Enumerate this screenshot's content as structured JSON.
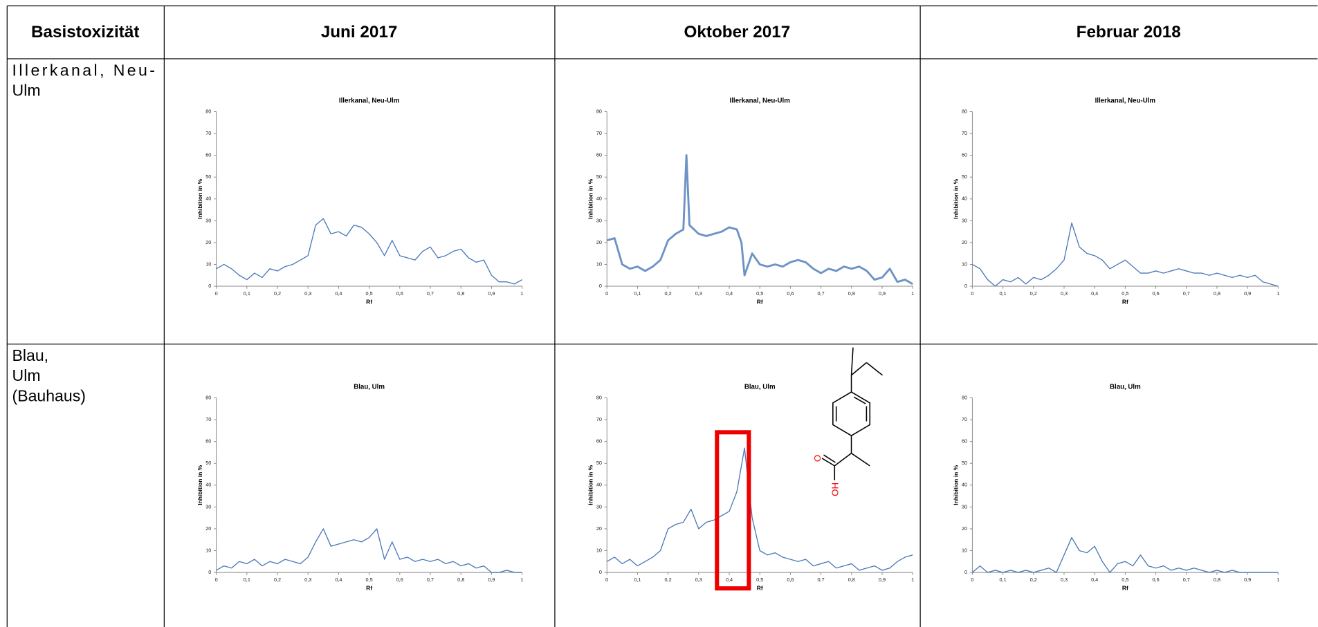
{
  "table": {
    "header": [
      "Basistoxizität",
      "Juni 2017",
      "Oktober 2017",
      "Februar 2018"
    ],
    "rows": [
      {
        "label": [
          "Illerkanal,  Neu-",
          "Ulm"
        ]
      },
      {
        "label": [
          "Blau,",
          "Ulm",
          "(Bauhaus)"
        ]
      }
    ]
  },
  "chart_data": [
    {
      "type": "line",
      "title": "Illerkanal, Neu-Ulm",
      "y_label": "Inhibition in %",
      "x_label": "Rf",
      "color": "#4a78b8",
      "x": [
        0,
        0.025,
        0.05,
        0.075,
        0.1,
        0.125,
        0.15,
        0.175,
        0.2,
        0.225,
        0.25,
        0.275,
        0.3,
        0.325,
        0.35,
        0.375,
        0.4,
        0.425,
        0.45,
        0.475,
        0.5,
        0.525,
        0.55,
        0.575,
        0.6,
        0.625,
        0.65,
        0.675,
        0.7,
        0.725,
        0.75,
        0.775,
        0.8,
        0.825,
        0.85,
        0.875,
        0.9,
        0.925,
        0.95,
        0.975,
        1
      ],
      "values": [
        8,
        10,
        8,
        5,
        3,
        6,
        4,
        8,
        7,
        9,
        10,
        12,
        14,
        28,
        31,
        24,
        25,
        23,
        28,
        27,
        24,
        20,
        14,
        21,
        14,
        13,
        12,
        16,
        18,
        13,
        14,
        16,
        17,
        13,
        11,
        12,
        5,
        2,
        2,
        1,
        3
      ],
      "xlim": [
        0,
        1
      ],
      "ylim": [
        0,
        80
      ],
      "xticks": [
        0,
        {
          "value": 0.1,
          "label": "0,1"
        },
        {
          "value": 0.2,
          "label": "0,2"
        },
        {
          "value": 0.3,
          "label": "0,3"
        },
        {
          "value": 0.4,
          "label": "0,4"
        },
        {
          "value": 0.5,
          "label": "0,5"
        },
        {
          "value": 0.6,
          "label": "0,6"
        },
        {
          "value": 0.7,
          "label": "0,7"
        },
        {
          "value": 0.8,
          "label": "0,8"
        },
        {
          "value": 0.9,
          "label": "0,9"
        },
        1
      ],
      "yticks": [
        0,
        10,
        20,
        30,
        40,
        50,
        60,
        70,
        80
      ]
    },
    {
      "type": "line",
      "title": "Illerkanal, Neu-Ulm",
      "y_label": "Inhibition in %",
      "x_label": "Rf",
      "color": "#6d93c6",
      "x": [
        0,
        0.025,
        0.05,
        0.075,
        0.1,
        0.125,
        0.15,
        0.175,
        0.2,
        0.225,
        0.25,
        0.26,
        0.27,
        0.3,
        0.325,
        0.35,
        0.375,
        0.4,
        0.425,
        0.44,
        0.45,
        0.475,
        0.5,
        0.525,
        0.55,
        0.575,
        0.6,
        0.625,
        0.65,
        0.675,
        0.7,
        0.725,
        0.75,
        0.775,
        0.8,
        0.825,
        0.85,
        0.875,
        0.9,
        0.925,
        0.95,
        0.975,
        1
      ],
      "values": [
        21,
        22,
        10,
        8,
        9,
        7,
        9,
        12,
        21,
        24,
        26,
        60,
        28,
        24,
        23,
        24,
        25,
        27,
        26,
        20,
        5,
        15,
        10,
        9,
        10,
        9,
        11,
        12,
        11,
        8,
        6,
        8,
        7,
        9,
        8,
        9,
        7,
        3,
        4,
        8,
        2,
        3,
        1
      ],
      "xlim": [
        0,
        1
      ],
      "ylim": [
        0,
        80
      ],
      "xticks": [
        0,
        {
          "value": 0.1,
          "label": "0,1"
        },
        {
          "value": 0.2,
          "label": "0,2"
        },
        {
          "value": 0.3,
          "label": "0,3"
        },
        {
          "value": 0.4,
          "label": "0,4"
        },
        {
          "value": 0.5,
          "label": "0,5"
        },
        {
          "value": 0.6,
          "label": "0,6"
        },
        {
          "value": 0.7,
          "label": "0,7"
        },
        {
          "value": 0.8,
          "label": "0,8"
        },
        {
          "value": 0.9,
          "label": "0,9"
        },
        1
      ],
      "yticks": [
        0,
        10,
        20,
        30,
        40,
        50,
        60,
        70,
        80
      ]
    },
    {
      "type": "line",
      "title": "Illerkanal, Neu-Ulm",
      "y_label": "Inhibition in %",
      "x_label": "Rf",
      "color": "#4a78b8",
      "x": [
        0,
        0.025,
        0.05,
        0.075,
        0.1,
        0.125,
        0.15,
        0.175,
        0.2,
        0.225,
        0.25,
        0.275,
        0.3,
        0.325,
        0.35,
        0.375,
        0.4,
        0.425,
        0.45,
        0.475,
        0.5,
        0.525,
        0.55,
        0.575,
        0.6,
        0.625,
        0.65,
        0.675,
        0.7,
        0.725,
        0.75,
        0.775,
        0.8,
        0.825,
        0.85,
        0.875,
        0.9,
        0.925,
        0.95,
        0.975,
        1
      ],
      "values": [
        10,
        8,
        3,
        0,
        3,
        2,
        4,
        1,
        4,
        3,
        5,
        8,
        12,
        29,
        18,
        15,
        14,
        12,
        8,
        10,
        12,
        9,
        6,
        6,
        7,
        6,
        7,
        8,
        7,
        6,
        6,
        5,
        6,
        5,
        4,
        5,
        4,
        5,
        2,
        1,
        0
      ],
      "xlim": [
        0,
        1
      ],
      "ylim": [
        0,
        80
      ],
      "xticks": [
        0,
        {
          "value": 0.1,
          "label": "0,1"
        },
        {
          "value": 0.2,
          "label": "0,2"
        },
        {
          "value": 0.3,
          "label": "0,3"
        },
        {
          "value": 0.4,
          "label": "0,4"
        },
        {
          "value": 0.5,
          "label": "0,5"
        },
        {
          "value": 0.6,
          "label": "0,6"
        },
        {
          "value": 0.7,
          "label": "0,7"
        },
        {
          "value": 0.8,
          "label": "0,8"
        },
        {
          "value": 0.9,
          "label": "0,9"
        },
        1
      ],
      "yticks": [
        0,
        10,
        20,
        30,
        40,
        50,
        60,
        70,
        80
      ]
    },
    {
      "type": "line",
      "title": "Blau, Ulm",
      "y_label": "Inhibition in %",
      "x_label": "Rf",
      "color": "#4a78b8",
      "x": [
        0,
        0.025,
        0.05,
        0.075,
        0.1,
        0.125,
        0.15,
        0.175,
        0.2,
        0.225,
        0.25,
        0.275,
        0.3,
        0.325,
        0.35,
        0.375,
        0.4,
        0.425,
        0.45,
        0.475,
        0.5,
        0.525,
        0.55,
        0.575,
        0.6,
        0.625,
        0.65,
        0.675,
        0.7,
        0.725,
        0.75,
        0.775,
        0.8,
        0.825,
        0.85,
        0.875,
        0.9,
        0.925,
        0.95,
        0.975,
        1
      ],
      "values": [
        1,
        3,
        2,
        5,
        4,
        6,
        3,
        5,
        4,
        6,
        5,
        4,
        7,
        14,
        20,
        12,
        13,
        14,
        15,
        14,
        16,
        20,
        6,
        14,
        6,
        7,
        5,
        6,
        5,
        6,
        4,
        5,
        3,
        4,
        2,
        3,
        0,
        0,
        1,
        0,
        0
      ],
      "xlim": [
        0,
        1
      ],
      "ylim": [
        0,
        80
      ],
      "xticks": [
        0,
        {
          "value": 0.1,
          "label": "0,1"
        },
        {
          "value": 0.2,
          "label": "0,2"
        },
        {
          "value": 0.3,
          "label": "0,3"
        },
        {
          "value": 0.4,
          "label": "0,4"
        },
        {
          "value": 0.5,
          "label": "0,5"
        },
        {
          "value": 0.6,
          "label": "0,6"
        },
        {
          "value": 0.7,
          "label": "0,7"
        },
        {
          "value": 0.8,
          "label": "0,8"
        },
        {
          "value": 0.9,
          "label": "0,9"
        },
        1
      ],
      "yticks": [
        0,
        10,
        20,
        30,
        40,
        50,
        60,
        70,
        80
      ]
    },
    {
      "type": "line",
      "title": "Blau, Ulm",
      "y_label": "Inhibition in %",
      "x_label": "Rf",
      "color": "#4a78b8",
      "x": [
        0,
        0.025,
        0.05,
        0.075,
        0.1,
        0.125,
        0.15,
        0.175,
        0.2,
        0.225,
        0.25,
        0.275,
        0.3,
        0.325,
        0.35,
        0.375,
        0.4,
        0.425,
        0.45,
        0.475,
        0.5,
        0.525,
        0.55,
        0.575,
        0.6,
        0.625,
        0.65,
        0.675,
        0.7,
        0.725,
        0.75,
        0.775,
        0.8,
        0.825,
        0.85,
        0.875,
        0.9,
        0.925,
        0.95,
        0.975,
        1
      ],
      "values": [
        5,
        7,
        4,
        6,
        3,
        5,
        7,
        10,
        20,
        22,
        23,
        29,
        20,
        23,
        24,
        26,
        28,
        37,
        57,
        25,
        10,
        8,
        9,
        7,
        6,
        5,
        6,
        3,
        4,
        5,
        2,
        3,
        4,
        1,
        2,
        3,
        1,
        2,
        5,
        7,
        8
      ],
      "xlim": [
        0,
        1
      ],
      "ylim": [
        0,
        80
      ],
      "xticks": [
        0,
        {
          "value": 0.1,
          "label": "0,1"
        },
        {
          "value": 0.2,
          "label": "0,2"
        },
        {
          "value": 0.3,
          "label": "0,3"
        },
        {
          "value": 0.4,
          "label": "0,4"
        },
        {
          "value": 0.5,
          "label": "0,5"
        },
        {
          "value": 0.6,
          "label": "0,6"
        },
        {
          "value": 0.7,
          "label": "0,7"
        },
        {
          "value": 0.8,
          "label": "0,8"
        },
        {
          "value": 0.9,
          "label": "0,9"
        },
        1
      ],
      "yticks": [
        0,
        10,
        20,
        30,
        40,
        50,
        60,
        70,
        80
      ],
      "annotations": [
        "O",
        "HO"
      ]
    },
    {
      "type": "line",
      "title": "Blau, Ulm",
      "y_label": "Inhibition in %",
      "x_label": "Rf",
      "color": "#4a78b8",
      "x": [
        0,
        0.025,
        0.05,
        0.075,
        0.1,
        0.125,
        0.15,
        0.175,
        0.2,
        0.225,
        0.25,
        0.275,
        0.3,
        0.325,
        0.35,
        0.375,
        0.4,
        0.425,
        0.45,
        0.475,
        0.5,
        0.525,
        0.55,
        0.575,
        0.6,
        0.625,
        0.65,
        0.675,
        0.7,
        0.725,
        0.75,
        0.775,
        0.8,
        0.825,
        0.85,
        0.875,
        0.9,
        0.925,
        0.95,
        0.975,
        1
      ],
      "values": [
        0,
        3,
        0,
        1,
        0,
        1,
        0,
        1,
        0,
        1,
        2,
        0,
        8,
        16,
        10,
        9,
        12,
        5,
        0,
        4,
        5,
        3,
        8,
        3,
        2,
        3,
        1,
        2,
        1,
        2,
        1,
        0,
        1,
        0,
        1,
        0,
        0,
        0,
        0,
        0,
        0
      ],
      "xlim": [
        0,
        1
      ],
      "ylim": [
        0,
        80
      ],
      "xticks": [
        0,
        {
          "value": 0.1,
          "label": "0,1"
        },
        {
          "value": 0.2,
          "label": "0,2"
        },
        {
          "value": 0.3,
          "label": "0,3"
        },
        {
          "value": 0.4,
          "label": "0,4"
        },
        {
          "value": 0.5,
          "label": "0,5"
        },
        {
          "value": 0.6,
          "label": "0,6"
        },
        {
          "value": 0.7,
          "label": "0,7"
        },
        {
          "value": 0.8,
          "label": "0,8"
        },
        {
          "value": 0.9,
          "label": "0,9"
        },
        1
      ],
      "yticks": [
        0,
        10,
        20,
        30,
        40,
        50,
        60,
        70,
        80
      ]
    }
  ]
}
